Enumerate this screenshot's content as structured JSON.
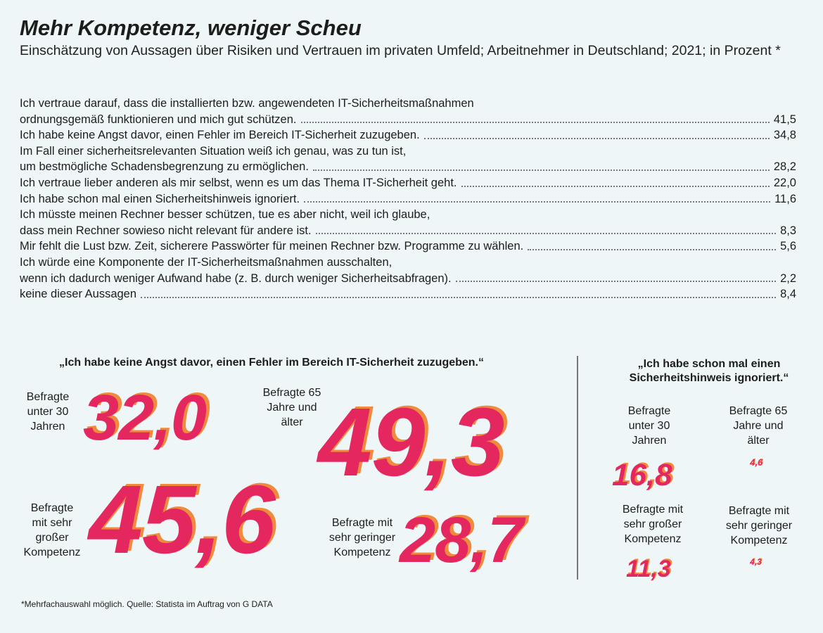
{
  "title": "Mehr Kompetenz, weniger Scheu",
  "subtitle": "Einschätzung von Aussagen über Risiken und Vertrauen im privaten Umfeld; Arbeitnehmer in Deutschland; 2021; in Prozent *",
  "footnote": "*Mehrfachauswahl möglich. Quelle: Statista im Auftrag von G DATA",
  "colors": {
    "accent": "#e4285f",
    "shadow": "#f08a3c",
    "background": "#eef6f8"
  },
  "chart_data": [
    {
      "type": "table",
      "rows": [
        {
          "lines": [
            "Ich vertraue darauf, dass die installierten bzw. angewendeten IT-Sicherheitsmaßnahmen",
            "ordnungsgemäß funktionieren und mich gut schützen."
          ],
          "value": "41,5"
        },
        {
          "lines": [
            "Ich habe keine Angst davor, einen Fehler im Bereich IT-Sicherheit zuzugeben."
          ],
          "value": "34,8"
        },
        {
          "lines": [
            "Im Fall einer sicherheitsrelevanten Situation weiß ich genau, was zu tun ist,",
            "um bestmögliche Schadensbegrenzung zu ermöglichen."
          ],
          "value": "28,2"
        },
        {
          "lines": [
            "Ich vertraue lieber anderen als mir selbst, wenn es um das Thema IT-Sicherheit geht."
          ],
          "value": "22,0"
        },
        {
          "lines": [
            "Ich habe schon mal einen Sicherheitshinweis ignoriert."
          ],
          "value": "11,6"
        },
        {
          "lines": [
            "Ich müsste meinen Rechner besser schützen, tue es aber nicht, weil ich glaube,",
            "dass mein Rechner sowieso nicht relevant für andere ist."
          ],
          "value": "8,3"
        },
        {
          "lines": [
            "Mir fehlt die Lust bzw. Zeit, sicherere Passwörter für meinen Rechner bzw. Programme zu wählen."
          ],
          "value": "5,6"
        },
        {
          "lines": [
            "Ich würde eine Komponente der IT-Sicherheitsmaßnahmen ausschalten,",
            "wenn ich dadurch weniger Aufwand habe (z. B. durch weniger Sicherheitsabfragen)."
          ],
          "value": "2,2"
        },
        {
          "lines": [
            "keine dieser Aussagen"
          ],
          "value": "8,4"
        }
      ]
    },
    {
      "type": "bar",
      "title": "„Ich habe keine Angst davor, einen Fehler im Bereich IT-Sicherheit zuzugeben.“",
      "categories": [
        "Befragte unter 30 Jahren",
        "Befragte 65 Jahre und älter",
        "Befragte mit sehr großer Kompetenz",
        "Befragte mit sehr geringer Kompetenz"
      ],
      "values": [
        32.0,
        49.3,
        45.6,
        28.7
      ],
      "display": [
        "32,0",
        "49,3",
        "45,6",
        "28,7"
      ]
    },
    {
      "type": "bar",
      "title": "„Ich habe schon mal einen Sicherheitshinweis ignoriert.“",
      "categories": [
        "Befragte unter 30 Jahren",
        "Befragte 65 Jahre und älter",
        "Befragte mit sehr großer Kompetenz",
        "Befragte mit sehr geringer Kompetenz"
      ],
      "values": [
        16.8,
        4.6,
        11.3,
        4.3
      ],
      "display": [
        "16,8",
        "4,6",
        "11,3",
        "4,3"
      ]
    }
  ],
  "panels": {
    "left": {
      "quote": "„Ich habe keine Angst davor, einen Fehler im Bereich IT-Sicherheit zuzugeben.“",
      "items": [
        {
          "label": "Befragte\nunter 30\nJahren",
          "value": "32,0"
        },
        {
          "label": "Befragte 65\nJahre und\nälter",
          "value": "49,3"
        },
        {
          "label": "Befragte\nmit sehr\ngroßer\nKompetenz",
          "value": "45,6"
        },
        {
          "label": "Befragte mit\nsehr geringer\nKompetenz",
          "value": "28,7"
        }
      ]
    },
    "right": {
      "quote": "„Ich habe schon mal einen\nSicherheitshinweis ignoriert.“",
      "items": [
        {
          "label": "Befragte\nunter 30\nJahren",
          "value": "16,8"
        },
        {
          "label": "Befragte 65\nJahre und\nälter",
          "value": "4,6"
        },
        {
          "label": "Befragte mit\nsehr großer\nKompetenz",
          "value": "11,3"
        },
        {
          "label": "Befragte mit\nsehr geringer\nKompetenz",
          "value": "4,3"
        }
      ]
    }
  }
}
